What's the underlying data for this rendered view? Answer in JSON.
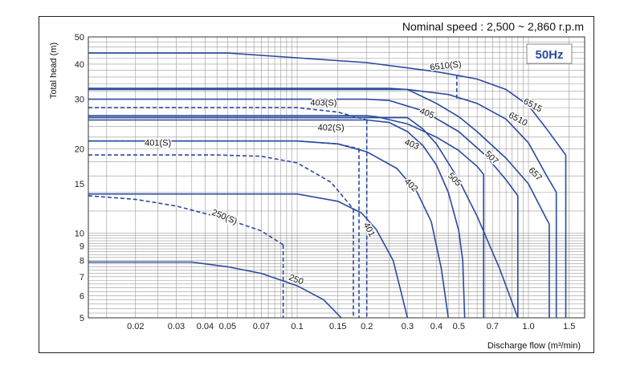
{
  "chart_data": {
    "type": "line",
    "title": "",
    "annotation": "Nominal speed : 2,500 ~ 2,860 r.p.m",
    "badge": "50Hz",
    "xlabel": "Discharge flow (m³/min)",
    "ylabel": "Total head (m)",
    "x_scale": "log",
    "y_scale": "log",
    "xlim": [
      0.0125,
      1.75
    ],
    "ylim": [
      5,
      50
    ],
    "grid": true,
    "x_ticks": [
      0.02,
      0.03,
      0.04,
      0.05,
      0.07,
      0.1,
      0.15,
      0.2,
      0.3,
      0.4,
      0.5,
      0.7,
      1.0,
      1.5
    ],
    "x_tick_labels": [
      "0.02",
      "0.03",
      "0.04",
      "0.05",
      "0.07",
      "0.1",
      "0.15",
      "0.2",
      "0.3",
      "0.4",
      "0.5",
      "0.7",
      "1.0",
      "1.5"
    ],
    "y_ticks": [
      5,
      6,
      7,
      8,
      9,
      10,
      15,
      20,
      30,
      40,
      50
    ],
    "y_tick_labels": [
      "5",
      "6",
      "7",
      "8",
      "9",
      "10",
      "15",
      "20",
      "30",
      "40",
      "50"
    ],
    "line_color": "#2a4aa0",
    "series": [
      {
        "name": "6510(S)",
        "style": "solid",
        "points": [
          [
            0.0125,
            43.8
          ],
          [
            0.05,
            43.8
          ],
          [
            0.2,
            40.5
          ],
          [
            0.4,
            37.6
          ],
          [
            0.49,
            36.5
          ]
        ]
      },
      {
        "name": "6510(S)",
        "style": "dashed",
        "points": [
          [
            0.49,
            36.5
          ],
          [
            0.49,
            30.2
          ]
        ]
      },
      {
        "name": "6515",
        "style": "solid",
        "points": [
          [
            0.49,
            36.5
          ],
          [
            0.6,
            35.4
          ],
          [
            0.8,
            32.5
          ],
          [
            1.0,
            28.5
          ],
          [
            1.2,
            23.5
          ],
          [
            1.45,
            19
          ]
        ]
      },
      {
        "name": "6515",
        "style": "solid",
        "points": [
          [
            1.45,
            19
          ],
          [
            1.45,
            5
          ]
        ]
      },
      {
        "name": "6510",
        "style": "solid",
        "points": [
          [
            0.0125,
            32.5
          ],
          [
            0.22,
            32.5
          ],
          [
            0.3,
            32.5
          ],
          [
            0.45,
            31.2
          ],
          [
            0.6,
            29
          ],
          [
            0.8,
            25.5
          ],
          [
            1.0,
            21
          ],
          [
            1.2,
            16
          ],
          [
            1.32,
            14
          ]
        ]
      },
      {
        "name": "6510",
        "style": "solid",
        "points": [
          [
            1.32,
            14
          ],
          [
            1.32,
            5
          ]
        ]
      },
      {
        "name": "657",
        "style": "solid",
        "points": [
          [
            0.0125,
            32.8
          ],
          [
            0.25,
            32.8
          ],
          [
            0.3,
            32.5
          ],
          [
            0.4,
            29
          ],
          [
            0.5,
            26
          ],
          [
            0.6,
            23
          ],
          [
            0.8,
            18.5
          ],
          [
            1.0,
            15
          ],
          [
            1.2,
            11.2
          ],
          [
            1.23,
            10.8
          ]
        ]
      },
      {
        "name": "657",
        "style": "solid",
        "points": [
          [
            1.23,
            10.8
          ],
          [
            1.23,
            5
          ]
        ]
      },
      {
        "name": "507",
        "style": "solid",
        "points": [
          [
            0.0125,
            30
          ],
          [
            0.2,
            30
          ],
          [
            0.25,
            29.7
          ],
          [
            0.35,
            27.3
          ],
          [
            0.5,
            23
          ],
          [
            0.65,
            19
          ],
          [
            0.8,
            15.5
          ],
          [
            0.9,
            13.6
          ]
        ]
      },
      {
        "name": "507",
        "style": "solid",
        "points": [
          [
            0.9,
            13.6
          ],
          [
            0.9,
            5
          ]
        ]
      },
      {
        "name": "405",
        "style": "solid",
        "points": [
          [
            0.0125,
            26.2
          ],
          [
            0.2,
            26.2
          ],
          [
            0.22,
            26
          ],
          [
            0.3,
            24.5
          ],
          [
            0.4,
            22
          ],
          [
            0.5,
            19.7
          ],
          [
            0.6,
            17.3
          ],
          [
            0.64,
            16.2
          ]
        ]
      },
      {
        "name": "405",
        "style": "solid",
        "points": [
          [
            0.64,
            16.2
          ],
          [
            0.64,
            5
          ]
        ]
      },
      {
        "name": "505",
        "style": "solid",
        "points": [
          [
            0.0125,
            25.8
          ],
          [
            0.26,
            25.8
          ],
          [
            0.3,
            25.8
          ],
          [
            0.35,
            23.5
          ],
          [
            0.4,
            20.8
          ],
          [
            0.5,
            15.5
          ],
          [
            0.6,
            11.5
          ],
          [
            0.75,
            7.5
          ],
          [
            0.9,
            5
          ]
        ]
      },
      {
        "name": "403",
        "style": "solid",
        "points": [
          [
            0.0125,
            25.3
          ],
          [
            0.2,
            25.3
          ],
          [
            0.25,
            24.8
          ],
          [
            0.3,
            23
          ],
          [
            0.35,
            20.5
          ],
          [
            0.4,
            17.5
          ],
          [
            0.45,
            14
          ],
          [
            0.5,
            10.2
          ],
          [
            0.52,
            8
          ],
          [
            0.53,
            5
          ]
        ]
      },
      {
        "name": "403(S)",
        "style": "dashed",
        "points": [
          [
            0.0125,
            28
          ],
          [
            0.1,
            28
          ],
          [
            0.15,
            27
          ],
          [
            0.2,
            25.3
          ]
        ]
      },
      {
        "name": "403(S)",
        "style": "dashed",
        "points": [
          [
            0.2,
            25.3
          ],
          [
            0.2,
            5
          ]
        ]
      },
      {
        "name": "402",
        "style": "solid",
        "points": [
          [
            0.0125,
            21.3
          ],
          [
            0.1,
            21.3
          ],
          [
            0.15,
            20.8
          ],
          [
            0.2,
            19.5
          ],
          [
            0.27,
            17
          ],
          [
            0.33,
            14
          ],
          [
            0.38,
            11
          ],
          [
            0.42,
            7.5
          ],
          [
            0.45,
            5
          ]
        ]
      },
      {
        "name": "402(S)",
        "style": "dashed",
        "points": [
          [
            0.0125,
            21.3
          ],
          [
            0.1,
            21.3
          ],
          [
            0.15,
            20.8
          ],
          [
            0.185,
            20
          ]
        ]
      },
      {
        "name": "402(S)",
        "style": "dashed",
        "points": [
          [
            0.185,
            20
          ],
          [
            0.185,
            5
          ]
        ]
      },
      {
        "name": "401(S)",
        "style": "dashed",
        "points": [
          [
            0.0125,
            19
          ],
          [
            0.045,
            19
          ],
          [
            0.07,
            18.8
          ],
          [
            0.1,
            17.8
          ],
          [
            0.14,
            15.2
          ],
          [
            0.175,
            12.2
          ]
        ]
      },
      {
        "name": "401(S)",
        "style": "dashed",
        "points": [
          [
            0.175,
            12.2
          ],
          [
            0.175,
            5
          ]
        ]
      },
      {
        "name": "401",
        "style": "solid",
        "points": [
          [
            0.0125,
            13.8
          ],
          [
            0.1,
            13.8
          ],
          [
            0.15,
            13
          ],
          [
            0.19,
            11.8
          ],
          [
            0.22,
            10.3
          ],
          [
            0.26,
            8
          ],
          [
            0.3,
            5
          ]
        ]
      },
      {
        "name": "250(S)",
        "style": "dashed",
        "points": [
          [
            0.0125,
            13.6
          ],
          [
            0.02,
            13.2
          ],
          [
            0.03,
            12.5
          ],
          [
            0.05,
            11.2
          ],
          [
            0.07,
            10.2
          ],
          [
            0.087,
            9.1
          ]
        ]
      },
      {
        "name": "250(S)",
        "style": "dashed",
        "points": [
          [
            0.087,
            9.1
          ],
          [
            0.087,
            5
          ]
        ]
      },
      {
        "name": "250",
        "style": "solid",
        "points": [
          [
            0.0125,
            7.9
          ],
          [
            0.035,
            7.9
          ],
          [
            0.05,
            7.6
          ],
          [
            0.07,
            7.2
          ],
          [
            0.1,
            6.5
          ],
          [
            0.13,
            5.8
          ],
          [
            0.155,
            5
          ]
        ]
      }
    ],
    "curve_labels": [
      {
        "text": "6510(S)",
        "x": 0.44,
        "y": 38.6,
        "angle": -6
      },
      {
        "text": "6515",
        "x": 1.03,
        "y": 28,
        "angle": 28
      },
      {
        "text": "6510",
        "x": 0.89,
        "y": 25,
        "angle": 28
      },
      {
        "text": "657",
        "x": 1.05,
        "y": 16,
        "angle": 45
      },
      {
        "text": "507",
        "x": 0.68,
        "y": 18.3,
        "angle": 45
      },
      {
        "text": "405",
        "x": 0.36,
        "y": 26.2,
        "angle": 22
      },
      {
        "text": "505",
        "x": 0.47,
        "y": 15.3,
        "angle": 45
      },
      {
        "text": "403",
        "x": 0.31,
        "y": 20.3,
        "angle": 22
      },
      {
        "text": "403(S)",
        "x": 0.13,
        "y": 28.5,
        "angle": 0
      },
      {
        "text": "402",
        "x": 0.305,
        "y": 14.6,
        "angle": 45
      },
      {
        "text": "402(S)",
        "x": 0.14,
        "y": 23.2,
        "angle": 0
      },
      {
        "text": "401(S)",
        "x": 0.025,
        "y": 20.5,
        "angle": 0
      },
      {
        "text": "401",
        "x": 0.2,
        "y": 10.2,
        "angle": 62
      },
      {
        "text": "250(S)",
        "x": 0.048,
        "y": 11.2,
        "angle": 22
      },
      {
        "text": "250",
        "x": 0.098,
        "y": 6.7,
        "angle": 22
      }
    ]
  }
}
